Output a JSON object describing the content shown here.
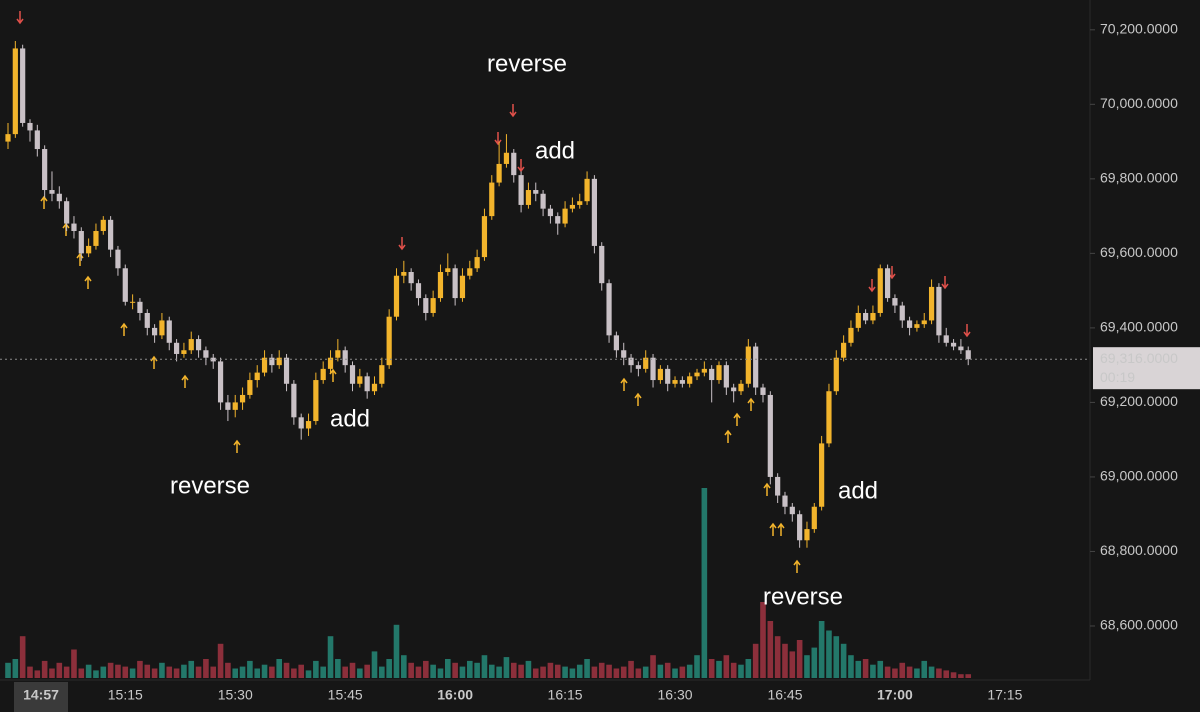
{
  "chart_data": {
    "type": "candlestick",
    "x": [
      "14:59",
      "15:00",
      "15:01",
      "15:02",
      "15:03",
      "15:04",
      "15:05",
      "15:06",
      "15:07",
      "15:08",
      "15:09",
      "15:10",
      "15:11",
      "15:12",
      "15:13",
      "15:14",
      "15:15",
      "15:16",
      "15:17",
      "15:18",
      "15:19",
      "15:20",
      "15:21",
      "15:22",
      "15:23",
      "15:24",
      "15:25",
      "15:26",
      "15:27",
      "15:28",
      "15:29",
      "15:30",
      "15:31",
      "15:32",
      "15:33",
      "15:34",
      "15:35",
      "15:36",
      "15:37",
      "15:38",
      "15:39",
      "15:40",
      "15:41",
      "15:42",
      "15:43",
      "15:44",
      "15:45",
      "15:46",
      "15:47",
      "15:48",
      "15:49",
      "15:50",
      "15:51",
      "15:52",
      "15:53",
      "15:54",
      "15:55",
      "15:56",
      "15:57",
      "15:58",
      "15:59",
      "16:00",
      "16:01",
      "16:02",
      "16:03",
      "16:04",
      "16:05",
      "16:06",
      "16:07",
      "16:08",
      "16:09",
      "16:10",
      "16:11",
      "16:12",
      "16:13",
      "16:14",
      "16:15",
      "16:16",
      "16:17",
      "16:18",
      "16:19",
      "16:20",
      "16:21",
      "16:22",
      "16:23",
      "16:24",
      "16:25",
      "16:26",
      "16:27",
      "16:28",
      "16:29",
      "16:30",
      "16:31",
      "16:32",
      "16:33",
      "16:34",
      "16:35",
      "16:36",
      "16:37",
      "16:38",
      "16:39",
      "16:40",
      "16:41",
      "16:42",
      "16:43",
      "16:44",
      "16:45",
      "16:46",
      "16:47",
      "16:48",
      "16:49",
      "16:50",
      "16:51",
      "16:52",
      "16:53",
      "16:54",
      "16:55",
      "16:56",
      "16:57",
      "16:58",
      "16:59",
      "17:00",
      "17:01",
      "17:02",
      "17:03",
      "17:04",
      "17:05",
      "17:06",
      "17:07",
      "17:08",
      "17:09",
      "17:10"
    ],
    "ohlc": [
      [
        69900,
        69950,
        69880,
        69920
      ],
      [
        69920,
        70170,
        69910,
        70150
      ],
      [
        70150,
        70160,
        69940,
        69950
      ],
      [
        69950,
        69960,
        69900,
        69930
      ],
      [
        69930,
        69945,
        69860,
        69880
      ],
      [
        69880,
        69890,
        69750,
        69770
      ],
      [
        69770,
        69820,
        69740,
        69760
      ],
      [
        69760,
        69780,
        69720,
        69740
      ],
      [
        69740,
        69750,
        69660,
        69680
      ],
      [
        69680,
        69700,
        69640,
        69660
      ],
      [
        69660,
        69670,
        69580,
        69600
      ],
      [
        69600,
        69640,
        69590,
        69620
      ],
      [
        69620,
        69680,
        69610,
        69660
      ],
      [
        69660,
        69700,
        69650,
        69690
      ],
      [
        69690,
        69700,
        69590,
        69610
      ],
      [
        69610,
        69620,
        69540,
        69560
      ],
      [
        69560,
        69570,
        69460,
        69470
      ],
      [
        69470,
        69490,
        69450,
        69470
      ],
      [
        69470,
        69480,
        69420,
        69440
      ],
      [
        69440,
        69450,
        69380,
        69400
      ],
      [
        69400,
        69410,
        69360,
        69380
      ],
      [
        69380,
        69440,
        69370,
        69420
      ],
      [
        69420,
        69430,
        69340,
        69360
      ],
      [
        69360,
        69370,
        69310,
        69330
      ],
      [
        69330,
        69360,
        69320,
        69340
      ],
      [
        69340,
        69390,
        69330,
        69370
      ],
      [
        69370,
        69380,
        69320,
        69340
      ],
      [
        69340,
        69350,
        69300,
        69320
      ],
      [
        69320,
        69330,
        69290,
        69310
      ],
      [
        69310,
        69320,
        69180,
        69200
      ],
      [
        69200,
        69220,
        69150,
        69180
      ],
      [
        69180,
        69220,
        69160,
        69200
      ],
      [
        69200,
        69240,
        69180,
        69220
      ],
      [
        69220,
        69280,
        69210,
        69260
      ],
      [
        69260,
        69300,
        69240,
        69280
      ],
      [
        69280,
        69340,
        69270,
        69320
      ],
      [
        69320,
        69330,
        69280,
        69300
      ],
      [
        69300,
        69340,
        69290,
        69320
      ],
      [
        69320,
        69330,
        69230,
        69250
      ],
      [
        69250,
        69260,
        69140,
        69160
      ],
      [
        69160,
        69170,
        69100,
        69130
      ],
      [
        69130,
        69170,
        69110,
        69150
      ],
      [
        69150,
        69280,
        69140,
        69260
      ],
      [
        69260,
        69310,
        69250,
        69290
      ],
      [
        69290,
        69340,
        69280,
        69320
      ],
      [
        69320,
        69370,
        69310,
        69340
      ],
      [
        69340,
        69350,
        69280,
        69300
      ],
      [
        69300,
        69310,
        69230,
        69250
      ],
      [
        69250,
        69290,
        69240,
        69270
      ],
      [
        69270,
        69280,
        69210,
        69230
      ],
      [
        69230,
        69270,
        69220,
        69250
      ],
      [
        69250,
        69320,
        69240,
        69300
      ],
      [
        69300,
        69450,
        69290,
        69430
      ],
      [
        69430,
        69560,
        69420,
        69540
      ],
      [
        69540,
        69580,
        69520,
        69550
      ],
      [
        69550,
        69560,
        69500,
        69520
      ],
      [
        69520,
        69530,
        69460,
        69480
      ],
      [
        69480,
        69490,
        69420,
        69440
      ],
      [
        69440,
        69500,
        69430,
        69480
      ],
      [
        69480,
        69570,
        69470,
        69550
      ],
      [
        69550,
        69600,
        69540,
        69560
      ],
      [
        69560,
        69570,
        69460,
        69480
      ],
      [
        69480,
        69560,
        69470,
        69540
      ],
      [
        69540,
        69580,
        69530,
        69560
      ],
      [
        69560,
        69610,
        69550,
        69590
      ],
      [
        69590,
        69720,
        69580,
        69700
      ],
      [
        69700,
        69810,
        69690,
        69790
      ],
      [
        69790,
        69900,
        69780,
        69840
      ],
      [
        69840,
        69920,
        69830,
        69870
      ],
      [
        69870,
        69880,
        69790,
        69810
      ],
      [
        69810,
        69820,
        69710,
        69730
      ],
      [
        69730,
        69790,
        69720,
        69770
      ],
      [
        69770,
        69790,
        69740,
        69760
      ],
      [
        69760,
        69770,
        69700,
        69720
      ],
      [
        69720,
        69730,
        69680,
        69700
      ],
      [
        69700,
        69710,
        69650,
        69680
      ],
      [
        69680,
        69740,
        69670,
        69720
      ],
      [
        69720,
        69750,
        69710,
        69730
      ],
      [
        69730,
        69760,
        69720,
        69740
      ],
      [
        69740,
        69820,
        69730,
        69800
      ],
      [
        69800,
        69810,
        69600,
        69620
      ],
      [
        69620,
        69630,
        69500,
        69520
      ],
      [
        69520,
        69530,
        69360,
        69380
      ],
      [
        69380,
        69390,
        69320,
        69340
      ],
      [
        69340,
        69360,
        69300,
        69320
      ],
      [
        69320,
        69330,
        69280,
        69300
      ],
      [
        69300,
        69310,
        69270,
        69290
      ],
      [
        69290,
        69340,
        69280,
        69320
      ],
      [
        69320,
        69330,
        69240,
        69260
      ],
      [
        69260,
        69300,
        69250,
        69290
      ],
      [
        69290,
        69300,
        69230,
        69250
      ],
      [
        69250,
        69270,
        69240,
        69260
      ],
      [
        69260,
        69270,
        69240,
        69250
      ],
      [
        69250,
        69280,
        69240,
        69270
      ],
      [
        69270,
        69290,
        69260,
        69280
      ],
      [
        69280,
        69310,
        69270,
        69290
      ],
      [
        69290,
        69300,
        69200,
        69260
      ],
      [
        69260,
        69310,
        69250,
        69300
      ],
      [
        69300,
        69310,
        69220,
        69240
      ],
      [
        69240,
        69250,
        69200,
        69230
      ],
      [
        69230,
        69260,
        69220,
        69250
      ],
      [
        69250,
        69370,
        69240,
        69350
      ],
      [
        69350,
        69360,
        69220,
        69240
      ],
      [
        69240,
        69250,
        69200,
        69220
      ],
      [
        69220,
        69230,
        68980,
        69000
      ],
      [
        69000,
        69010,
        68930,
        68950
      ],
      [
        68950,
        68960,
        68900,
        68920
      ],
      [
        68920,
        68930,
        68880,
        68900
      ],
      [
        68900,
        68910,
        68810,
        68830
      ],
      [
        68830,
        68880,
        68810,
        68860
      ],
      [
        68860,
        68930,
        68850,
        68920
      ],
      [
        68920,
        69110,
        68910,
        69090
      ],
      [
        69090,
        69250,
        69080,
        69230
      ],
      [
        69230,
        69340,
        69220,
        69320
      ],
      [
        69320,
        69380,
        69310,
        69360
      ],
      [
        69360,
        69420,
        69350,
        69400
      ],
      [
        69400,
        69460,
        69390,
        69440
      ],
      [
        69440,
        69450,
        69410,
        69420
      ],
      [
        69420,
        69460,
        69410,
        69440
      ],
      [
        69440,
        69570,
        69430,
        69560
      ],
      [
        69560,
        69570,
        69470,
        69480
      ],
      [
        69480,
        69490,
        69440,
        69460
      ],
      [
        69460,
        69470,
        69400,
        69420
      ],
      [
        69420,
        69430,
        69380,
        69400
      ],
      [
        69400,
        69420,
        69390,
        69410
      ],
      [
        69410,
        69440,
        69400,
        69420
      ],
      [
        69420,
        69530,
        69410,
        69510
      ],
      [
        69510,
        69520,
        69360,
        69380
      ],
      [
        69380,
        69400,
        69350,
        69360
      ],
      [
        69360,
        69370,
        69340,
        69350
      ],
      [
        69350,
        69370,
        69330,
        69340
      ],
      [
        69340,
        69350,
        69300,
        69316
      ]
    ],
    "volume": [
      8,
      10,
      22,
      6,
      4,
      9,
      5,
      8,
      6,
      15,
      5,
      7,
      4,
      6,
      8,
      7,
      6,
      5,
      9,
      7,
      5,
      8,
      6,
      5,
      7,
      9,
      6,
      10,
      6,
      18,
      8,
      5,
      6,
      9,
      5,
      7,
      6,
      10,
      8,
      5,
      7,
      4,
      9,
      6,
      22,
      10,
      6,
      8,
      5,
      7,
      14,
      6,
      10,
      28,
      12,
      8,
      6,
      9,
      7,
      5,
      10,
      8,
      6,
      9,
      8,
      12,
      7,
      6,
      11,
      8,
      7,
      9,
      5,
      6,
      8,
      7,
      6,
      5,
      7,
      10,
      6,
      8,
      7,
      5,
      6,
      9,
      5,
      6,
      12,
      7,
      8,
      5,
      6,
      7,
      12,
      100,
      10,
      9,
      12,
      8,
      7,
      10,
      18,
      40,
      30,
      22,
      18,
      14,
      20,
      12,
      16,
      30,
      25,
      22,
      18,
      12,
      9,
      10,
      7,
      9,
      6,
      5,
      8,
      6,
      5,
      9,
      6,
      5,
      4,
      3,
      2,
      2
    ],
    "up_color": "#f2b42c",
    "down_color": "#c9c1c6",
    "volume_up_color": "#23786a",
    "volume_down_color": "#8c2f3b",
    "ylim": [
      68455,
      70280
    ],
    "yticks": [
      {
        "value": 68600,
        "label": "68,600.0000"
      },
      {
        "value": 68800,
        "label": "68,800.0000"
      },
      {
        "value": 69000,
        "label": "69,000.0000"
      },
      {
        "value": 69200,
        "label": "69,200.0000"
      },
      {
        "value": 69400,
        "label": "69,400.0000"
      },
      {
        "value": 69600,
        "label": "69,600.0000"
      },
      {
        "value": 69800,
        "label": "69,800.0000"
      },
      {
        "value": 70000,
        "label": "70,000.0000"
      },
      {
        "value": 70200,
        "label": "70,200.0000"
      }
    ],
    "xticks": [
      "15:15",
      "15:30",
      "15:45",
      "16:00",
      "16:15",
      "16:30",
      "16:45",
      "17:00",
      "17:15"
    ],
    "cursor_time": "14:57",
    "last_price": {
      "value": 69316,
      "label": "69,316.0000"
    },
    "countdown": "00:19",
    "annotations": [
      "reverse",
      "add",
      "reverse",
      "add",
      "reverse",
      "add"
    ]
  }
}
